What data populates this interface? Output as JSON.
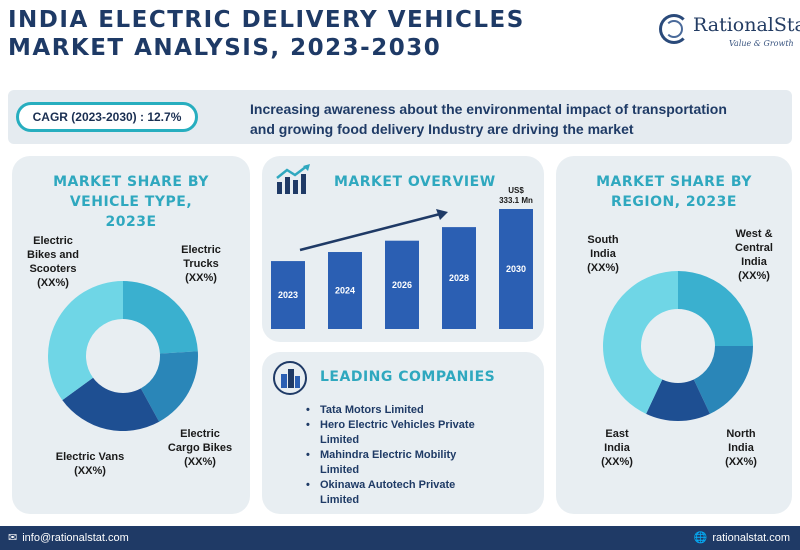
{
  "title": {
    "line1": "INDIA ELECTRIC DELIVERY VEHICLES",
    "line2": "MARKET ANALYSIS, 2023-2030"
  },
  "logo": {
    "name": "RationalStat",
    "tagline": "Value & Growth"
  },
  "banner": {
    "cagr": "CAGR (2023-2030) : 12.7%",
    "line1": "Increasing awareness about the environmental impact of transportation",
    "line2": "and growing food delivery Industry are driving the market"
  },
  "vehicle_panel": {
    "heading": [
      "MARKET SHARE BY",
      "VEHICLE TYPE,",
      "2023E"
    ],
    "labels": {
      "bikes": [
        "Electric",
        "Bikes and",
        "Scooters",
        "(XX%)"
      ],
      "trucks": [
        "Electric",
        "Trucks",
        "(XX%)"
      ],
      "cargo": [
        "Electric",
        "Cargo Bikes",
        "(XX%)"
      ],
      "vans": [
        "Electric Vans",
        "(XX%)"
      ]
    }
  },
  "overview_panel": {
    "heading": "MARKET OVERVIEW",
    "value_label": [
      "US$",
      "333.1 Mn"
    ]
  },
  "companies_panel": {
    "heading": "LEADING COMPANIES",
    "items": [
      [
        "Tata Motors Limited"
      ],
      [
        "Hero Electric Vehicles Private",
        "Limited"
      ],
      [
        "Mahindra Electric Mobility",
        "Limited"
      ],
      [
        "Okinawa Autotech Private",
        "Limited"
      ]
    ]
  },
  "region_panel": {
    "heading": [
      "MARKET SHARE BY",
      "REGION, 2023E"
    ],
    "labels": {
      "south": [
        "South",
        "India",
        "(XX%)"
      ],
      "west": [
        "West &",
        "Central",
        "India",
        "(XX%)"
      ],
      "north": [
        "North",
        "India",
        "(XX%)"
      ],
      "east": [
        "East",
        "India",
        "(XX%)"
      ]
    }
  },
  "footer": {
    "email": "info@rationalstat.com",
    "website": "rationalstat.com"
  },
  "chart_data": [
    {
      "type": "pie",
      "title": "MARKET SHARE BY VEHICLE TYPE, 2023E",
      "categories": [
        "Electric Trucks",
        "Electric Cargo Bikes",
        "Electric Vans",
        "Electric Bikes and Scooters"
      ],
      "values": [
        24,
        18,
        23,
        35
      ],
      "colors": [
        "#3ab0cf",
        "#2a86b8",
        "#1e4f92",
        "#6fd6e6"
      ]
    },
    {
      "type": "bar",
      "title": "MARKET OVERVIEW",
      "categories": [
        "2023",
        "2024",
        "2026",
        "2028",
        "2030"
      ],
      "values": [
        150,
        170,
        195,
        225,
        265
      ],
      "color": "#2b5fb3"
    },
    {
      "type": "pie",
      "title": "MARKET SHARE BY REGION, 2023E",
      "categories": [
        "West & Central India",
        "North India",
        "East India",
        "South India"
      ],
      "values": [
        25,
        18,
        14,
        43
      ],
      "colors": [
        "#3ab0cf",
        "#2a86b8",
        "#1e4f92",
        "#6fd6e6"
      ]
    }
  ],
  "colors": {
    "navy": "#1f3a66",
    "teal": "#2fa8bf",
    "panel": "#e8eef2"
  },
  "icons": [
    "chart-growth-icon",
    "buildings-icon",
    "email-icon",
    "globe-icon"
  ]
}
